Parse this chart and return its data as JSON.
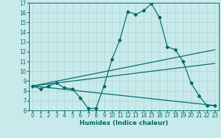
{
  "xlabel": "Humidex (Indice chaleur)",
  "background_color": "#c8eaea",
  "grid_color": "#aad4d4",
  "line_color": "#006868",
  "xlim": [
    -0.5,
    23.5
  ],
  "ylim": [
    6,
    17
  ],
  "xticks": [
    0,
    1,
    2,
    3,
    4,
    5,
    6,
    7,
    8,
    9,
    10,
    11,
    12,
    13,
    14,
    15,
    16,
    17,
    18,
    19,
    20,
    21,
    22,
    23
  ],
  "yticks": [
    6,
    7,
    8,
    9,
    10,
    11,
    12,
    13,
    14,
    15,
    16,
    17
  ],
  "line1_x": [
    0,
    1,
    2,
    3,
    4,
    5,
    6,
    7,
    8,
    9,
    10,
    11,
    12,
    13,
    14,
    15,
    16,
    17,
    18,
    19,
    20,
    21,
    22,
    23
  ],
  "line1_y": [
    8.5,
    8.2,
    8.5,
    8.8,
    8.3,
    8.2,
    7.3,
    6.2,
    6.2,
    8.5,
    11.2,
    13.2,
    16.1,
    15.8,
    16.2,
    16.9,
    15.5,
    12.5,
    12.2,
    11.0,
    8.8,
    7.5,
    6.5,
    6.5
  ],
  "line2_x": [
    0,
    23
  ],
  "line2_y": [
    8.5,
    12.2
  ],
  "line3_x": [
    0,
    23
  ],
  "line3_y": [
    8.5,
    10.8
  ],
  "line4_x": [
    0,
    23
  ],
  "line4_y": [
    8.5,
    6.5
  ],
  "xlabel_fontsize": 6.5,
  "tick_fontsize": 5.5,
  "linewidth": 0.9,
  "markersize": 2.2
}
